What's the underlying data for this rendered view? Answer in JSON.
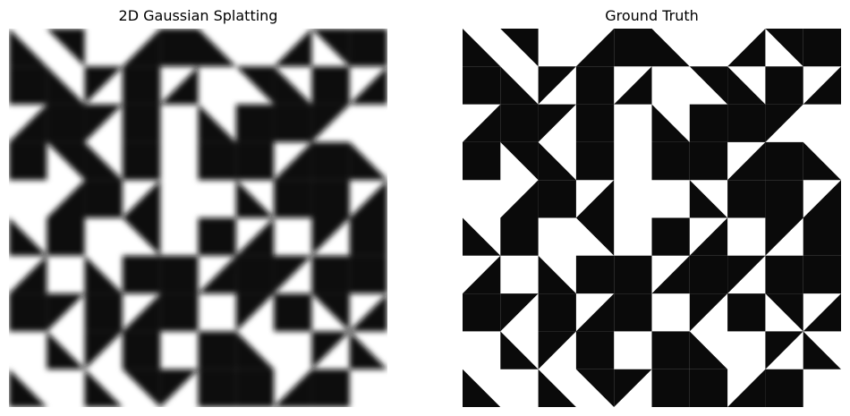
{
  "panels": [
    {
      "title": "2D Gaussian Splatting",
      "content": "blurred black-white triangle tiling (reconstruction)"
    },
    {
      "title": "Ground Truth",
      "content": "sharp black-white triangle tiling"
    }
  ],
  "colors": {
    "ink": "#0a0a0a",
    "paper": "#ffffff"
  }
}
